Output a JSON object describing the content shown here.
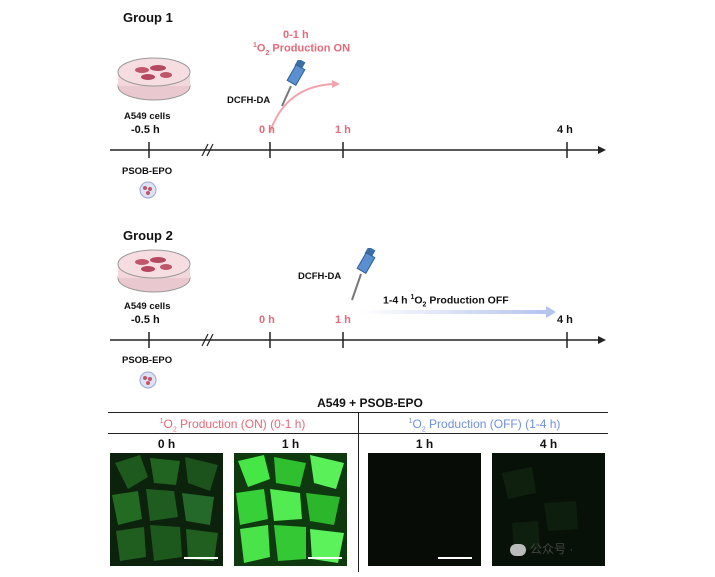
{
  "group1": {
    "title": "Group 1",
    "cells_label": "A549 cells",
    "probe_label": "DCFH-DA",
    "treat_label": "PSOB-EPO",
    "on_window": "0-1 h",
    "on_text": "O",
    "on_text_tail": " Production ON",
    "ticks": [
      "-0.5 h",
      "0 h",
      "1 h",
      "4 h"
    ]
  },
  "group2": {
    "title": "Group 2",
    "cells_label": "A549 cells",
    "probe_label": "DCFH-DA",
    "treat_label": "PSOB-EPO",
    "off_text_pre": "1-4 h ",
    "off_text_mid": "O",
    "off_text_tail": " Production OFF",
    "ticks": [
      "-0.5 h",
      "0 h",
      "1 h",
      "4 h"
    ]
  },
  "panel": {
    "title": "A549 + PSOB-EPO",
    "on_header_pre": "O",
    "on_header_tail": " Production (ON) (0-1 h)",
    "off_header_pre": "O",
    "off_header_tail": " Production (OFF) (1-4 h)",
    "on_times": [
      "0 h",
      "1 h"
    ],
    "off_times": [
      "1 h",
      "4 h"
    ]
  },
  "watermark": "公众号 ·",
  "colors": {
    "on": "#e46a78",
    "off": "#6f8fe0",
    "axis": "#222222",
    "fluor_bright": "#3cdc3c",
    "fluor_dim": "#1f6e1f"
  }
}
